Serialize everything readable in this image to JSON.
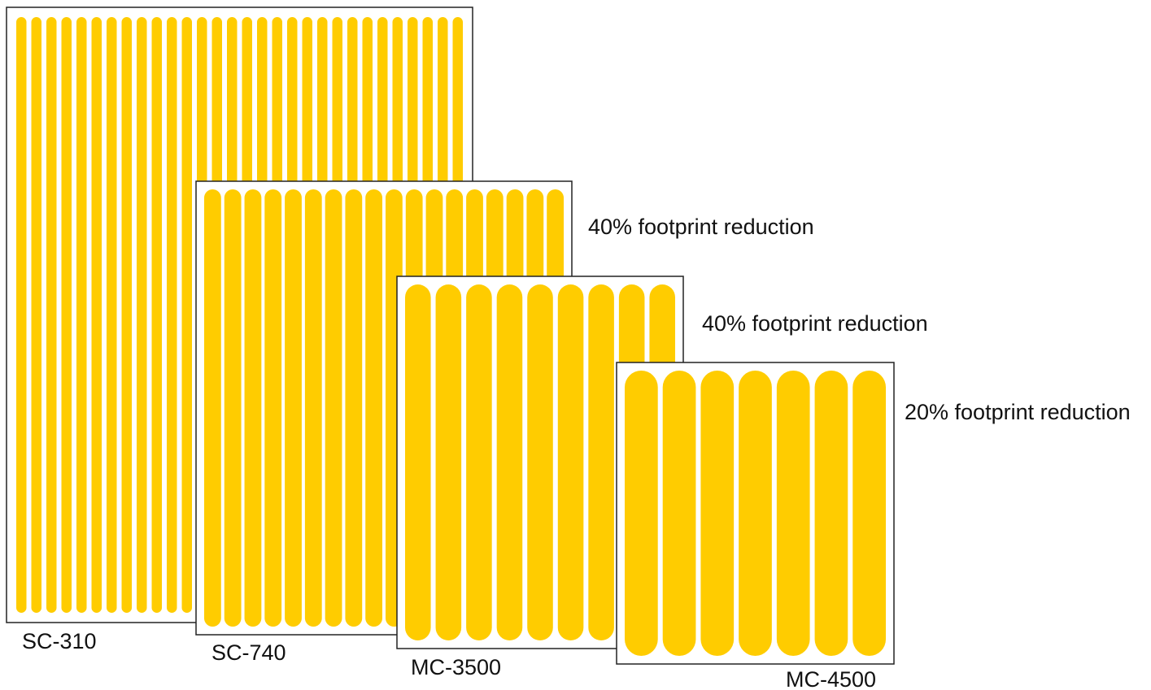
{
  "colors": {
    "strip": "#FFCC00",
    "outline": "#222222",
    "background": "#FFFFFF"
  },
  "panels": [
    {
      "name": "SC-310",
      "strip_count": 30
    },
    {
      "name": "SC-740",
      "strip_count": 18
    },
    {
      "name": "MC-3500",
      "strip_count": 9
    },
    {
      "name": "MC-4500",
      "strip_count": 7
    }
  ],
  "reductions": [
    {
      "text": "40% footprint reduction"
    },
    {
      "text": "40% footprint reduction"
    },
    {
      "text": "20% footprint reduction"
    }
  ]
}
